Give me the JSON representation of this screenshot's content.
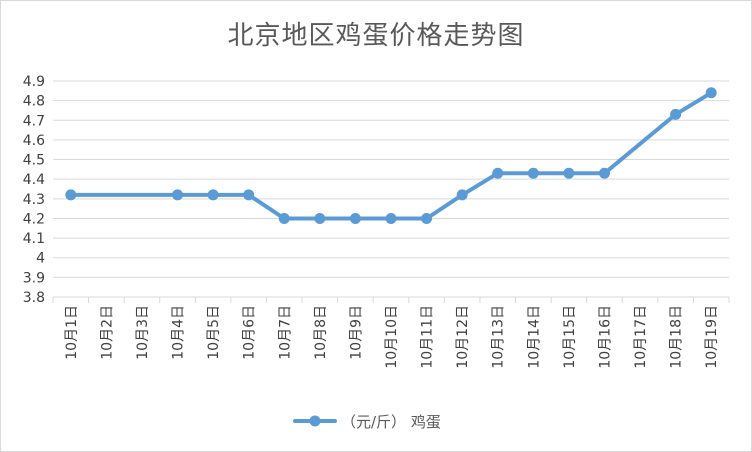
{
  "chart_data": {
    "type": "line",
    "title": "北京地区鸡蛋价格走势图",
    "categories": [
      "10月1日",
      "10月2日",
      "10月3日",
      "10月4日",
      "10月5日",
      "10月6日",
      "10月7日",
      "10月8日",
      "10月9日",
      "10月10日",
      "10月11日",
      "10月12日",
      "10月13日",
      "10月14日",
      "10月15日",
      "10月16日",
      "10月17日",
      "10月18日",
      "10月19日"
    ],
    "series": [
      {
        "name": "（元/斤） 鸡蛋",
        "color": "#5b9bd5",
        "values": [
          4.32,
          null,
          null,
          4.32,
          4.32,
          4.32,
          4.2,
          4.2,
          4.2,
          4.2,
          4.2,
          4.32,
          4.43,
          4.43,
          4.43,
          4.43,
          null,
          4.73,
          4.84
        ]
      }
    ],
    "yticks": [
      "3.8",
      "3.9",
      "4",
      "4.1",
      "4.2",
      "4.3",
      "4.4",
      "4.5",
      "4.6",
      "4.7",
      "4.8",
      "4.9"
    ],
    "ylim": [
      3.8,
      4.9
    ],
    "xlabel": "",
    "ylabel": "",
    "grid": true,
    "legend_position": "bottom",
    "gridline_color": "#d9d9d9"
  }
}
